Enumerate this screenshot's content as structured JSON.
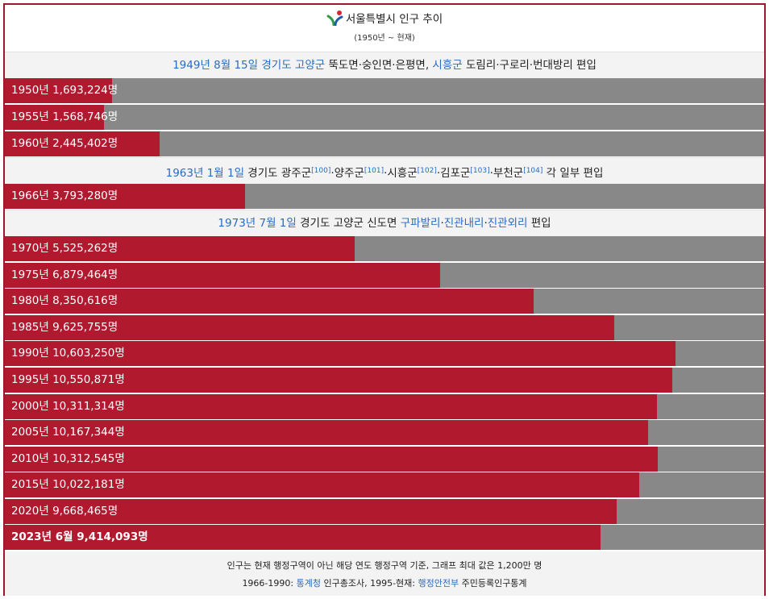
{
  "header": {
    "title": "서울특별시 인구 추이",
    "subtitle": "(1950년 ~ 현재)",
    "logo_icon": "seoul-logo-icon"
  },
  "events": [
    {
      "parts": [
        {
          "text": "1949년 8월 15일",
          "link": true
        },
        {
          "text": " "
        },
        {
          "text": "경기도 고양군",
          "link": true
        },
        {
          "text": " 뚝도면·숭인면·은평면, "
        },
        {
          "text": "시흥군",
          "link": true
        },
        {
          "text": " 도림리·구로리·번대방리 편입"
        }
      ]
    },
    {
      "parts": [
        {
          "text": "1963년 1월 1일",
          "link": true
        },
        {
          "text": " 경기도 광주군"
        },
        {
          "text": "[100]",
          "sup": true
        },
        {
          "text": "·양주군"
        },
        {
          "text": "[101]",
          "sup": true
        },
        {
          "text": "·시흥군"
        },
        {
          "text": "[102]",
          "sup": true
        },
        {
          "text": "·김포군"
        },
        {
          "text": "[103]",
          "sup": true
        },
        {
          "text": "·부천군"
        },
        {
          "text": "[104]",
          "sup": true
        },
        {
          "text": " 각 일부 편입"
        }
      ]
    },
    {
      "parts": [
        {
          "text": "1973년 7월 1일",
          "link": true
        },
        {
          "text": " 경기도 고양군 신도면 "
        },
        {
          "text": "구파발리",
          "link": true
        },
        {
          "text": "·"
        },
        {
          "text": "진관내리",
          "link": true
        },
        {
          "text": "·"
        },
        {
          "text": "진관외리",
          "link": true
        },
        {
          "text": " 편입"
        }
      ]
    }
  ],
  "chart_data": {
    "type": "bar",
    "orientation": "horizontal",
    "xlim": [
      0,
      12000000
    ],
    "bar_color": "#b11a2e",
    "track_color": "#888888",
    "categories": [
      "1950년",
      "1955년",
      "1960년",
      "1966년",
      "1970년",
      "1975년",
      "1980년",
      "1985년",
      "1990년",
      "1995년",
      "2000년",
      "2005년",
      "2010년",
      "2015년",
      "2020년",
      "2023년 6월"
    ],
    "values": [
      1693224,
      1568746,
      2445402,
      3793280,
      5525262,
      6879464,
      8350616,
      9625755,
      10603250,
      10550871,
      10311314,
      10167344,
      10312545,
      10022181,
      9668465,
      9414093
    ],
    "labels": [
      "1950년 1,693,224명",
      "1955년 1,568,746명",
      "1960년 2,445,402명",
      "1966년 3,793,280명",
      "1970년 5,525,262명",
      "1975년 6,879,464명",
      "1980년 8,350,616명",
      "1985년 9,625,755명",
      "1990년 10,603,250명",
      "1995년 10,550,871명",
      "2000년 10,311,314명",
      "2005년 10,167,344명",
      "2010년 10,312,545명",
      "2015년 10,022,181명",
      "2020년 9,668,465명",
      "2023년 6월 9,414,093명"
    ]
  },
  "footer": {
    "note": "인구는 현재 행정구역이 아닌 해당 연도 행정구역 기준, 그래프 최대 값은 1,200만 명",
    "source_parts": [
      {
        "text": "1966-1990: "
      },
      {
        "text": "통계청",
        "link": true
      },
      {
        "text": " 인구총조사, 1995-현재: "
      },
      {
        "text": "행정안전부",
        "link": true
      },
      {
        "text": " 주민등록인구통계"
      }
    ]
  }
}
